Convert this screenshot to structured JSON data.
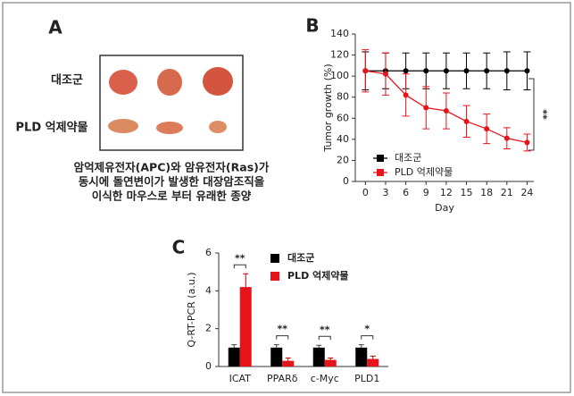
{
  "panel_a": {
    "label": "A",
    "rows": [
      "대조군",
      "PLD 억제약물"
    ],
    "caption": [
      "암억제유전자(APC)와 암유전자(Ras)가",
      "동시에 돌연변이가 발생한 대장암조직을",
      "이식한 마우스로 부터 유래한 종양"
    ]
  },
  "chart_data": [
    {
      "type": "line",
      "panel": "B",
      "x": [
        0,
        3,
        6,
        9,
        12,
        15,
        18,
        21,
        24
      ],
      "xlim": [
        -1.5,
        25
      ],
      "xticks": [
        0,
        3,
        6,
        9,
        12,
        15,
        18,
        21,
        24
      ],
      "ylim": [
        0,
        140
      ],
      "yticks": [
        0,
        20,
        40,
        60,
        80,
        100,
        120,
        140
      ],
      "x_label": "Day",
      "y_label": "Tumor growth (%)",
      "legend": "lower left",
      "annotation": "**",
      "series": [
        {
          "name": "대조군",
          "color": "#000000",
          "values": [
            105,
            105,
            105,
            105,
            105,
            105,
            105,
            105,
            105
          ],
          "errors": [
            18,
            17,
            17,
            17,
            17,
            17,
            17,
            18,
            18
          ]
        },
        {
          "name": "PLD 억제약물",
          "color": "#e8141c",
          "values": [
            105,
            102,
            82,
            70,
            67,
            57,
            50,
            41,
            37
          ],
          "errors": [
            20,
            20,
            20,
            20,
            17,
            15,
            14,
            10,
            8
          ]
        }
      ]
    },
    {
      "type": "bar",
      "panel": "C",
      "categories": [
        "ICAT",
        "PPARδ",
        "c-Myc",
        "PLD1"
      ],
      "ylim": [
        0,
        6
      ],
      "yticks": [
        0,
        2,
        4,
        6
      ],
      "y_label": "Q-RT-PCR (a.u.)",
      "legend": "upper right",
      "significance": [
        "**",
        "**",
        "**",
        "*"
      ],
      "series": [
        {
          "name": "대조군",
          "color": "#000000",
          "values": [
            1,
            1,
            1,
            1
          ],
          "errors": [
            0.15,
            0.15,
            0.12,
            0.15
          ]
        },
        {
          "name": "PLD 억제약물",
          "color": "#e8141c",
          "values": [
            4.2,
            0.3,
            0.35,
            0.4
          ],
          "errors": [
            0.7,
            0.15,
            0.1,
            0.15
          ]
        }
      ]
    }
  ]
}
